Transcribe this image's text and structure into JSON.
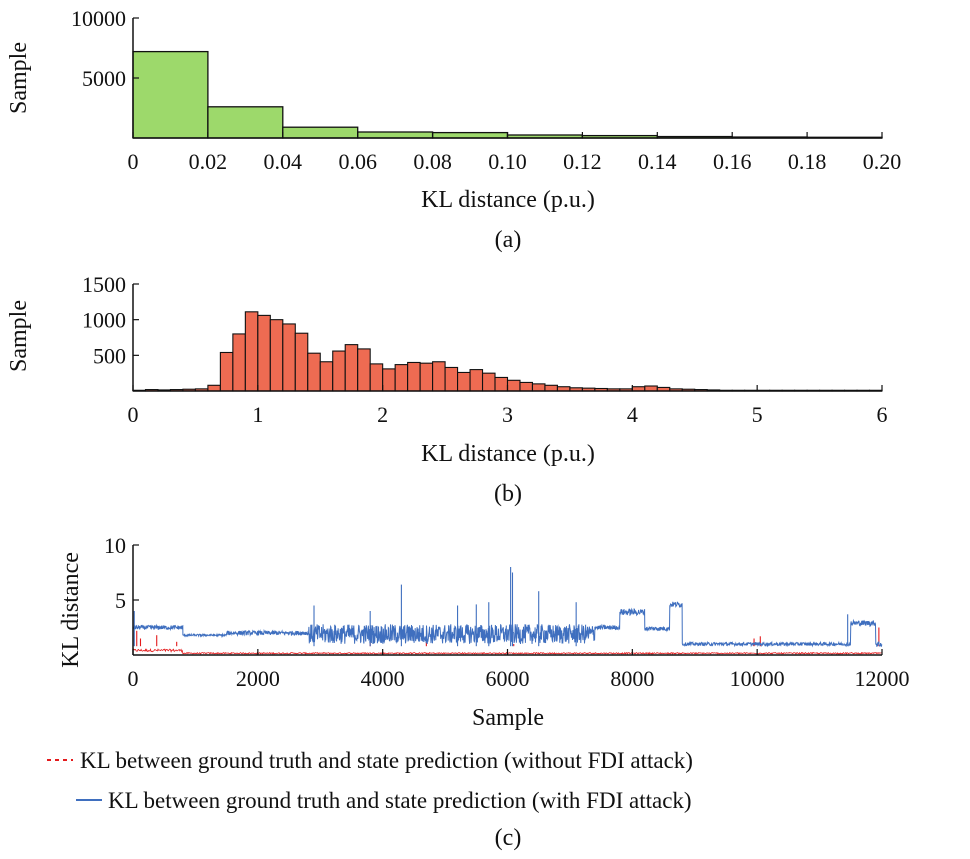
{
  "panels": {
    "a": {
      "caption": "(a)"
    },
    "b": {
      "caption": "(b)"
    },
    "c": {
      "caption": "(c)"
    }
  },
  "colors": {
    "hist_a_fill": "#9dd96b",
    "hist_b_fill": "#ee6b52",
    "series_without": "#e41a1c",
    "series_with": "#3f6fbf",
    "axis": "#111111"
  },
  "chart_data": [
    {
      "type": "bar",
      "subtype": "histogram",
      "panel": "a",
      "bin_edges": [
        0,
        0.02,
        0.04,
        0.06,
        0.08,
        0.1,
        0.12,
        0.14,
        0.16,
        0.18,
        0.2
      ],
      "values": [
        7200,
        2600,
        900,
        500,
        450,
        250,
        200,
        120,
        80,
        60
      ],
      "xlabel": "KL distance (p.u.)",
      "ylabel": "Sample",
      "xlim": [
        0,
        0.2
      ],
      "ylim": [
        0,
        10000
      ],
      "xticks": [
        "0",
        "0.02",
        "0.04",
        "0.06",
        "0.08",
        "0.10",
        "0.12",
        "0.14",
        "0.16",
        "0.18",
        "0.20"
      ],
      "yticks": [
        "5000",
        "10000"
      ],
      "ytick_values": [
        5000,
        10000
      ]
    },
    {
      "type": "bar",
      "subtype": "histogram",
      "panel": "b",
      "bin_start": 0,
      "bin_width": 0.1,
      "values": [
        10,
        20,
        15,
        20,
        25,
        30,
        80,
        540,
        800,
        1110,
        1060,
        1000,
        940,
        810,
        530,
        410,
        560,
        650,
        590,
        380,
        310,
        370,
        400,
        390,
        410,
        330,
        260,
        300,
        250,
        190,
        150,
        120,
        100,
        80,
        60,
        45,
        40,
        35,
        30,
        30,
        60,
        70,
        50,
        30,
        25,
        20,
        15,
        10,
        10,
        10,
        10,
        10,
        10,
        10,
        10,
        10,
        10,
        10,
        10,
        10
      ],
      "xlabel": "KL distance (p.u.)",
      "ylabel": "Sample",
      "xlim": [
        0,
        6
      ],
      "ylim": [
        0,
        1500
      ],
      "xticks": [
        "0",
        "1",
        "2",
        "3",
        "4",
        "5",
        "6"
      ],
      "xtick_values": [
        0,
        1,
        2,
        3,
        4,
        5,
        6
      ],
      "yticks": [
        "500",
        "1000",
        "1500"
      ],
      "ytick_values": [
        500,
        1000,
        1500
      ]
    },
    {
      "type": "line",
      "panel": "c",
      "xlabel": "Sample",
      "ylabel": "KL distance",
      "xlim": [
        0,
        12000
      ],
      "ylim": [
        0,
        10
      ],
      "xticks": [
        "0",
        "2000",
        "4000",
        "6000",
        "8000",
        "10000",
        "12000"
      ],
      "xtick_values": [
        0,
        2000,
        4000,
        6000,
        8000,
        10000,
        12000
      ],
      "yticks": [
        "5",
        "10"
      ],
      "ytick_values": [
        5,
        10
      ],
      "series": [
        {
          "name": "KL between ground truth and state prediction (without FDI attack)",
          "style": "dashed",
          "segments": [
            {
              "x": [
                0,
                800
              ],
              "level": 0.3,
              "noise": 0.6
            },
            {
              "x": [
                800,
                12000
              ],
              "level": 0.1,
              "noise": 0.3
            }
          ],
          "spikes": [
            [
              60,
              2.2
            ],
            [
              120,
              1.5
            ],
            [
              380,
              1.8
            ],
            [
              700,
              1.2
            ],
            [
              3800,
              1.3
            ],
            [
              4700,
              1.4
            ],
            [
              6100,
              1.0
            ],
            [
              9950,
              1.5
            ],
            [
              10050,
              1.7
            ],
            [
              11950,
              2.5
            ]
          ]
        },
        {
          "name": "KL between ground truth and state prediction (with FDI attack)",
          "style": "solid",
          "segments": [
            {
              "x": [
                0,
                800
              ],
              "level": 2.5,
              "noise": 0.4
            },
            {
              "x": [
                800,
                1500
              ],
              "level": 1.8,
              "noise": 0.2
            },
            {
              "x": [
                1500,
                2800
              ],
              "level": 2.0,
              "noise": 0.4
            },
            {
              "x": [
                2800,
                7400
              ],
              "level": 1.9,
              "noise": 1.8
            },
            {
              "x": [
                7400,
                7800
              ],
              "level": 2.5,
              "noise": 0.4
            },
            {
              "x": [
                7800,
                8200
              ],
              "level": 3.9,
              "noise": 0.6
            },
            {
              "x": [
                8200,
                8600
              ],
              "level": 2.4,
              "noise": 0.4
            },
            {
              "x": [
                8600,
                8800
              ],
              "level": 4.6,
              "noise": 0.5
            },
            {
              "x": [
                8800,
                11500
              ],
              "level": 1.0,
              "noise": 0.3
            },
            {
              "x": [
                11500,
                11900
              ],
              "level": 2.9,
              "noise": 0.5
            },
            {
              "x": [
                11900,
                12000
              ],
              "level": 1.0,
              "noise": 0.6
            }
          ],
          "spikes": [
            [
              20,
              4.0
            ],
            [
              2900,
              4.5
            ],
            [
              3800,
              4.0
            ],
            [
              4300,
              6.4
            ],
            [
              5200,
              4.5
            ],
            [
              5500,
              4.6
            ],
            [
              5700,
              4.8
            ],
            [
              6050,
              8.0
            ],
            [
              6080,
              7.5
            ],
            [
              6500,
              5.8
            ],
            [
              7100,
              4.8
            ],
            [
              11450,
              3.7
            ]
          ]
        }
      ]
    }
  ]
}
